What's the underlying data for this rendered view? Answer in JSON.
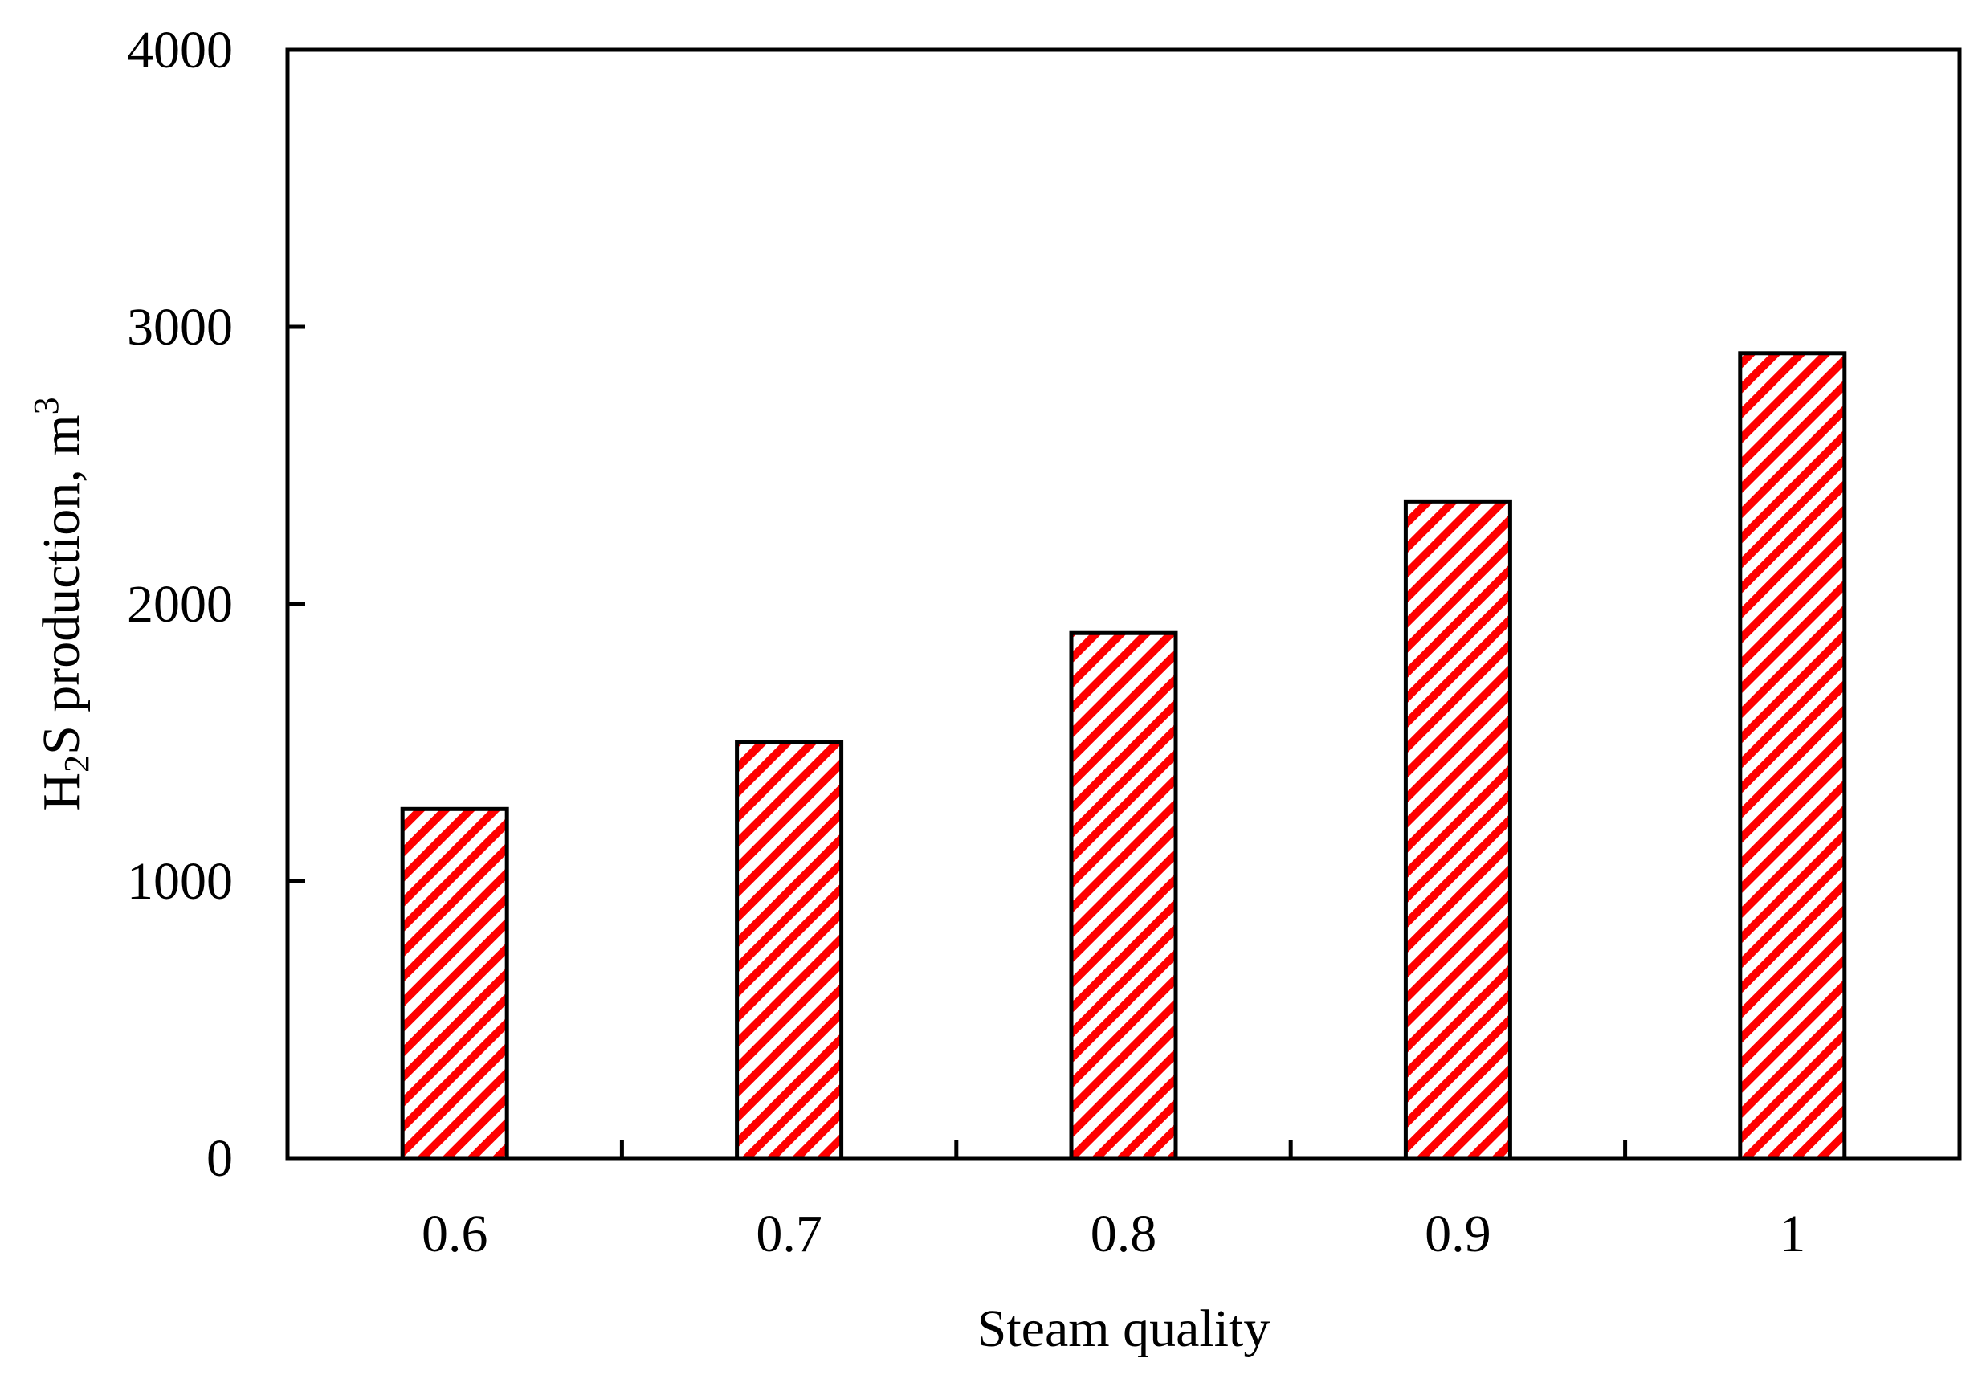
{
  "chart_data": {
    "type": "bar",
    "categories": [
      "0.6",
      "0.7",
      "0.8",
      "0.9",
      "1"
    ],
    "values": [
      1260,
      1500,
      1895,
      2370,
      2905
    ],
    "title": "",
    "xlabel": "Steam quality",
    "ylabel": {
      "part1": "H",
      "sub": "2",
      "part2": "S production, m",
      "sup": "3"
    },
    "ylim": [
      0,
      4000
    ],
    "yticks": [
      0,
      1000,
      2000,
      3000,
      4000
    ],
    "grid": false,
    "legend": "none",
    "bar_fill_pattern": "diagonal-hatch",
    "hatch_color": "#ff0000",
    "bar_border_color": "#000000"
  }
}
